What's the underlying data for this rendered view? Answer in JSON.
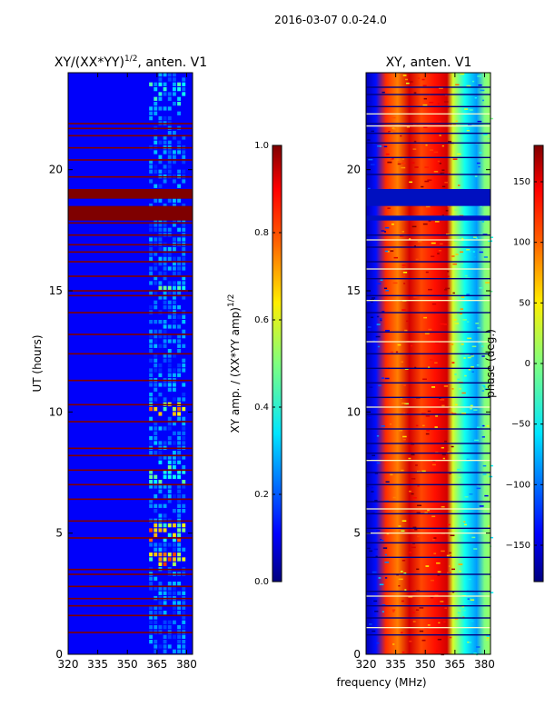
{
  "figure": {
    "suptitle": "2016-03-07 0.0-24.0",
    "xlabel": "frequency (MHz)"
  },
  "colors": {
    "jet": [
      "#00007f",
      "#0000ff",
      "#007fff",
      "#00ffff",
      "#7fff7f",
      "#ffff00",
      "#ff7f00",
      "#ff0000",
      "#7f0000"
    ]
  },
  "chart_data": [
    {
      "type": "heatmap",
      "title_main": "XY/(XX*YY)",
      "title_sup": "1/2",
      "title_rest": ", anten. V1",
      "xlabel": "",
      "ylabel": "UT (hours)",
      "xlim": [
        320,
        383
      ],
      "ylim": [
        0,
        24
      ],
      "x_ticks": [
        320,
        335,
        350,
        365,
        380
      ],
      "y_ticks": [
        0,
        5,
        10,
        15,
        20
      ],
      "colormap": "jet",
      "colorbar": {
        "label_main": "XY amp. / (XX*YY amp)",
        "label_sup": "1/2",
        "range": [
          0.0,
          1.0
        ],
        "ticks": [
          "0.0",
          "0.2",
          "0.4",
          "0.6",
          "0.8",
          "1.0"
        ]
      },
      "background_value": 0.12,
      "flagged_rows_ut": [
        0.9,
        1.6,
        2.0,
        2.3,
        2.8,
        3.3,
        3.5,
        4.8,
        5.5,
        6.4,
        7.0,
        7.6,
        8.2,
        8.5,
        9.6,
        10.3,
        11.3,
        12.4,
        13.2,
        14.1,
        14.8,
        15.0,
        15.6,
        16.2,
        16.6,
        16.9,
        17.3,
        17.8,
        18.4,
        19.7,
        20.4,
        20.9,
        21.4,
        21.7,
        21.9
      ],
      "flagged_bands_ut": [
        [
          17.9,
          18.5
        ],
        [
          18.8,
          19.2
        ]
      ],
      "flag_value": 1.0,
      "bright_band_mhz": [
        361,
        380
      ],
      "bright_rows_ut": [
        [
          3.5,
          4.2,
          0.72
        ],
        [
          4.6,
          5.3,
          0.72
        ],
        [
          9.7,
          10.3,
          0.68
        ],
        [
          6.9,
          8.0,
          0.45
        ],
        [
          14.9,
          15.2,
          0.45
        ],
        [
          22.5,
          23.5,
          0.4
        ]
      ]
    },
    {
      "type": "heatmap",
      "title_main": "XY, anten. V1",
      "title_sup": "",
      "title_rest": "",
      "xlabel": "frequency (MHz)",
      "ylabel": "",
      "xlim": [
        320,
        383
      ],
      "ylim": [
        0,
        24
      ],
      "x_ticks": [
        320,
        335,
        350,
        365,
        380
      ],
      "y_ticks": [
        0,
        5,
        10,
        15,
        20
      ],
      "colormap": "jet",
      "colorbar": {
        "label_main": "phase (deg.)",
        "label_sup": "",
        "range": [
          -180,
          180
        ],
        "ticks": [
          "−150",
          "−100",
          "−50",
          "0",
          "50",
          "100",
          "150"
        ],
        "tick_values": [
          -150,
          -100,
          -50,
          0,
          50,
          100,
          150
        ]
      },
      "phase_profile_mhz": [
        [
          320,
          -160
        ],
        [
          325,
          -130
        ],
        [
          330,
          120
        ],
        [
          336,
          90
        ],
        [
          342,
          150
        ],
        [
          348,
          110
        ],
        [
          355,
          130
        ],
        [
          361,
          150
        ],
        [
          364,
          30
        ],
        [
          370,
          -40
        ],
        [
          376,
          -80
        ],
        [
          380,
          0
        ],
        [
          383,
          10
        ]
      ],
      "flagged_bands_ut": [
        [
          18.5,
          19.2
        ],
        [
          17.9,
          18.1
        ]
      ],
      "dark_rows_ut": [
        0.8,
        1.5,
        2.0,
        2.6,
        3.3,
        4.0,
        4.6,
        5.2,
        5.8,
        6.3,
        7.0,
        7.5,
        8.3,
        8.7,
        9.3,
        9.9,
        10.6,
        11.2,
        11.8,
        12.4,
        13.3,
        14.1,
        14.8,
        15.5,
        16.2,
        16.8,
        17.3,
        19.8,
        20.5,
        21.1,
        21.5,
        21.9,
        22.6,
        23.1,
        23.4
      ],
      "light_rows_ut": [
        1.1,
        2.4,
        5.0,
        6.0,
        8.0,
        10.2,
        12.9,
        14.6,
        15.9,
        17.1,
        21.8,
        22.3
      ]
    }
  ]
}
